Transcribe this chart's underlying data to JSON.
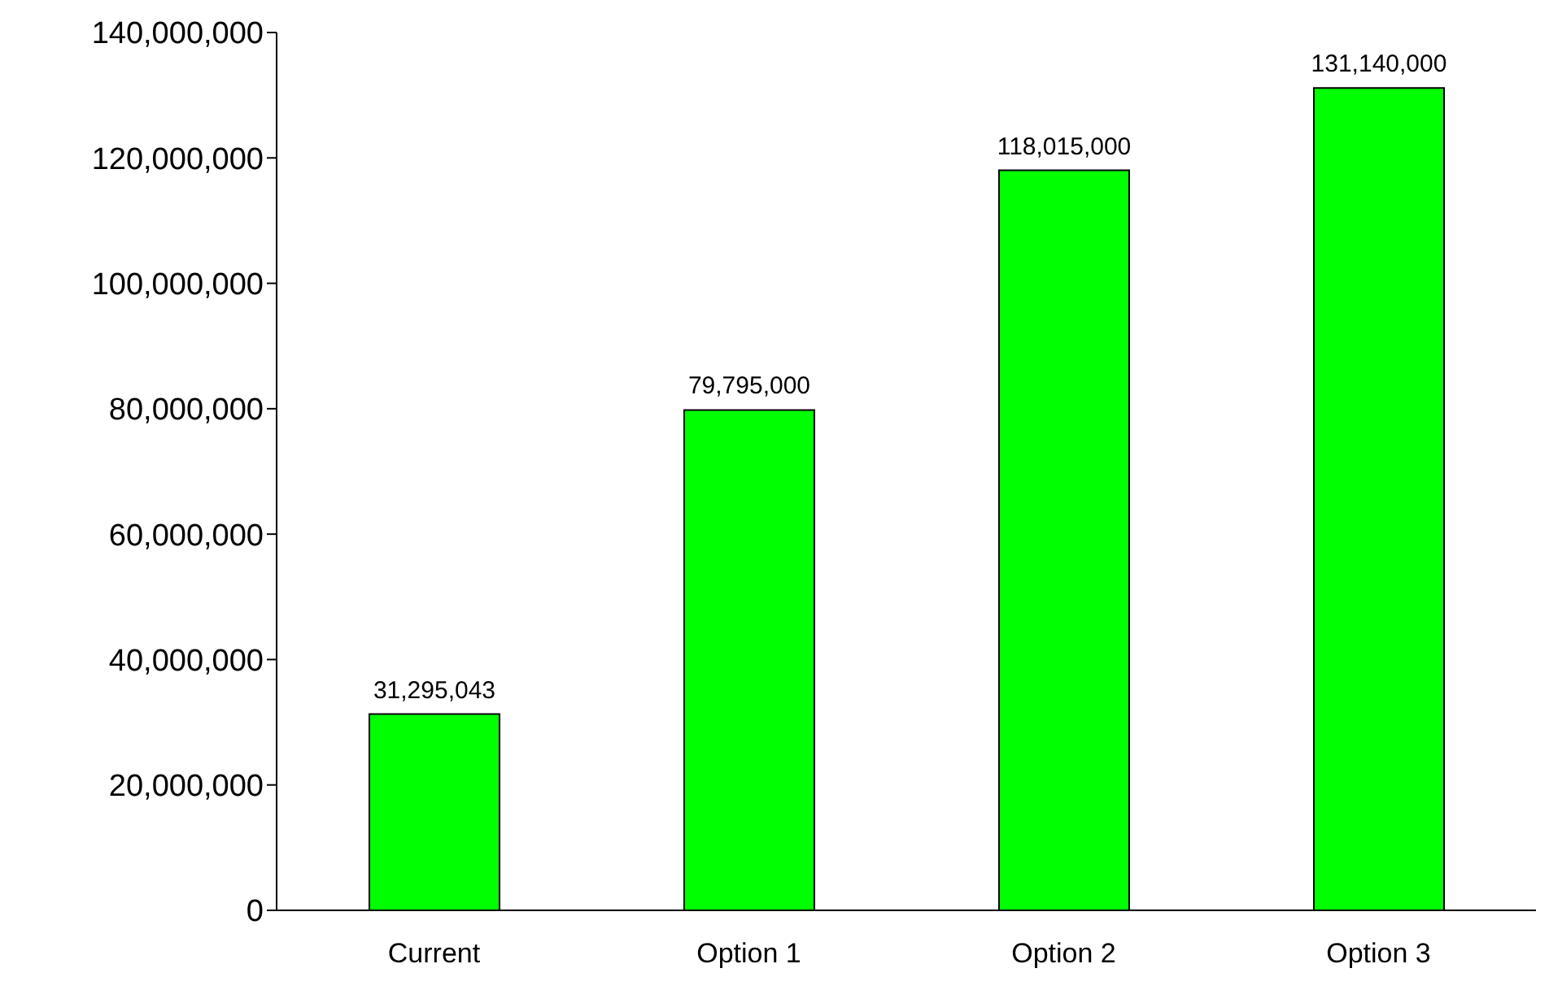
{
  "chart_data": {
    "type": "bar",
    "categories": [
      "Current",
      "Option 1",
      "Option 2",
      "Option 3"
    ],
    "values": [
      31295043,
      79795000,
      118015000,
      131140000
    ],
    "value_labels": [
      "31,295,043",
      "79,795,000",
      "118,015,000",
      "131,140,000"
    ],
    "color": "#00ff00",
    "ylim": [
      0,
      140000000
    ],
    "yticks": [
      0,
      {
        "value": 20000000,
        "label": "20,000,000"
      },
      {
        "value": 40000000,
        "label": "40,000,000"
      },
      {
        "value": 60000000,
        "label": "60,000,000"
      },
      {
        "value": 80000000,
        "label": "80,000,000"
      },
      {
        "value": 100000000,
        "label": "100,000,000"
      },
      {
        "value": 120000000,
        "label": "120,000,000"
      },
      {
        "value": 140000000,
        "label": "140,000,000"
      }
    ],
    "grid": false,
    "legend": false
  }
}
